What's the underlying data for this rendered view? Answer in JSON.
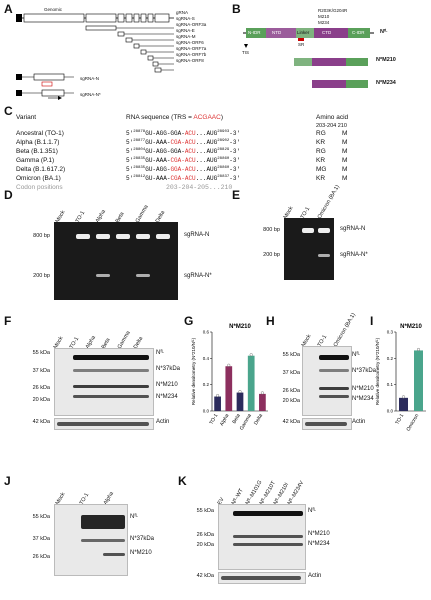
{
  "panels": {
    "A": "A",
    "B": "B",
    "C": "C",
    "D": "D",
    "E": "E",
    "F": "F",
    "G": "G",
    "H": "H",
    "I": "I",
    "J": "J",
    "K": "K"
  },
  "panelA": {
    "genomic_label": "Genomic",
    "orf_labels": [
      "S",
      "E",
      "M",
      "6",
      "7a",
      "7b",
      "8",
      "N"
    ],
    "transcripts": [
      "gRNA",
      "sgRNA-S",
      "sgRNA-ORF3a",
      "sgRNA-E",
      "sgRNA-M",
      "sgRNA-ORF6",
      "sgRNA-ORF7a",
      "sgRNA-ORF7b",
      "sgRNA-ORF8",
      "sgRNA-N",
      "sgRNA-N*"
    ],
    "n_label": "N",
    "n_star_label": "N*"
  },
  "panelB": {
    "mutations": "R203K/G204R",
    "m210": "M210",
    "m234": "M234",
    "tis": "TIS",
    "domains": [
      "N-IDR",
      "NTD",
      "Linker",
      "CTD",
      "C-IDR"
    ],
    "srrm": "SR",
    "n_fl": "Nᶠᴸ",
    "n_m210": "N*M210",
    "n_m234": "N*M234"
  },
  "panelC": {
    "header_variant": "Variant",
    "header_rna": "RNA sequence (TRS = ",
    "trs": "ACGAAC",
    "header_close": ")",
    "header_aa": "Amino acid",
    "aa_positions": "203-204   210",
    "rows": [
      {
        "variant": "Ancestral (TO-1)",
        "pre": "5'",
        "start": "28878",
        "seq1": "GU-AGG-GGA-",
        "seq2": "ACU",
        "seq3": "...AUG",
        "end": "28903",
        "post": "-3'",
        "aa1": "RG",
        "aa2": "M"
      },
      {
        "variant": "Alpha (B.1.1.7)",
        "pre": "5'",
        "start": "28877",
        "seq1": "GU-AAA-",
        "seq2": "CGA-ACU",
        "seq3": "...AUG",
        "end": "28902",
        "post": "-3'",
        "aa1": "KR",
        "aa2": "M"
      },
      {
        "variant": "Beta (B.1.351)",
        "pre": "5'",
        "start": "28804",
        "seq1": "GU-AGG-GGA-",
        "seq2": "ACU",
        "seq3": "...AUG",
        "end": "28829",
        "post": "-3'",
        "aa1": "RG",
        "aa2": "M"
      },
      {
        "variant": "Gamma (P.1)",
        "pre": "5'",
        "start": "28835",
        "seq1": "GU-AAA-",
        "seq2": "CGA-ACU",
        "seq3": "...AUG",
        "end": "28860",
        "post": "-3'",
        "aa1": "KR",
        "aa2": "M"
      },
      {
        "variant": "Delta (B.1.617.2)",
        "pre": "5'",
        "start": "28835",
        "seq1": "GU-AGG-",
        "seq2": "GGA-ACU",
        "seq3": "...AUG",
        "end": "28860",
        "post": "-3'",
        "aa1": "MG",
        "aa2": "M"
      },
      {
        "variant": "Omicron (BA.1)",
        "pre": "5'",
        "start": "28812",
        "seq1": "GU-AAA-",
        "seq2": "CGA-ACU",
        "seq3": "...AUG",
        "end": "28837",
        "post": "-3'",
        "aa1": "KR",
        "aa2": "M"
      }
    ],
    "codon_label": "Codon positions",
    "codon_positions": "203-204-205...210"
  },
  "panelD": {
    "lanes": [
      "Mock",
      "TO-1",
      "Alpha",
      "Beta",
      "Gamma",
      "Delta"
    ],
    "markers": [
      "800 bp",
      "200 bp"
    ],
    "bands": [
      "sgRNA-N",
      "sgRNA-N*"
    ]
  },
  "panelE": {
    "lanes": [
      "Mock",
      "TO-1",
      "Omicron (BA.1)"
    ],
    "markers": [
      "800 bp",
      "200 bp"
    ],
    "bands": [
      "sgRNA-N",
      "sgRNA-N*"
    ]
  },
  "panelF": {
    "lanes": [
      "Mock",
      "TO-1",
      "Alpha",
      "Beta",
      "Gamma",
      "Delta"
    ],
    "markers": [
      "55 kDa",
      "37 kDa",
      "26 kDa",
      "20 kDa",
      "42 kDa"
    ],
    "bands": [
      "Nᶠᴸ",
      "N*37kDa",
      "N*M210",
      "N*M234",
      "Actin"
    ]
  },
  "panelG": {
    "title": "N*M210",
    "ylabel": "Relative densitometry (N*210/Nᶠᴸ)",
    "yticks": [
      "0.0",
      "0.2",
      "0.4",
      "0.6"
    ],
    "categories": [
      "TO-1",
      "Alpha",
      "Beta",
      "Gamma",
      "Delta"
    ],
    "values": [
      0.11,
      0.34,
      0.14,
      0.42,
      0.13
    ],
    "colors": [
      "#2b2b5c",
      "#8c2f5e",
      "#2b2b5c",
      "#4aa58c",
      "#8c2f5e"
    ]
  },
  "panelH": {
    "lanes": [
      "Mock",
      "TO-1",
      "Omicron (BA.1)"
    ],
    "markers": [
      "55 kDa",
      "37 kDa",
      "26 kDa",
      "20 kDa",
      "42 kDa"
    ],
    "bands": [
      "Nᶠᴸ",
      "N*37kDa",
      "N*M210",
      "N*M234",
      "Actin"
    ]
  },
  "panelI": {
    "title": "N*M210",
    "ylabel": "Relative densitometry (N*210/Nᶠᴸ)",
    "yticks": [
      "0.0",
      "0.1",
      "0.2",
      "0.3"
    ],
    "categories": [
      "TO-1",
      "Omicron"
    ],
    "values": [
      0.05,
      0.23
    ],
    "colors": [
      "#2b2b5c",
      "#4aa58c"
    ]
  },
  "panelJ": {
    "lanes": [
      "Mock",
      "TO-1",
      "Alpha"
    ],
    "markers": [
      "55 kDa",
      "37 kDa",
      "26 kDa"
    ],
    "bands": [
      "Nᶠᴸ",
      "N*37kDa",
      "N*M210"
    ]
  },
  "panelK": {
    "lanes": [
      "EV",
      "Nᶠᴸ-WT",
      "Nᶠᴸ-M101G",
      "Nᶠᴸ-M210T",
      "Nᶠᴸ-M210I",
      "Nᶠᴸ-M234V"
    ],
    "markers": [
      "55 kDa",
      "26 kDa",
      "20 kDa",
      "42 kDa"
    ],
    "bands": [
      "Nᶠᴸ",
      "N*M210",
      "N*M234",
      "Actin"
    ]
  },
  "chart_data": [
    {
      "type": "bar",
      "title": "N*M210",
      "ylabel": "Relative densitometry (N*210/Nᶠᴸ)",
      "categories": [
        "TO-1",
        "Alpha",
        "Beta",
        "Gamma",
        "Delta"
      ],
      "values": [
        0.11,
        0.34,
        0.14,
        0.42,
        0.13
      ],
      "ylim": [
        0,
        0.6
      ]
    },
    {
      "type": "bar",
      "title": "N*M210",
      "ylabel": "Relative densitometry (N*210/Nᶠᴸ)",
      "categories": [
        "TO-1",
        "Omicron"
      ],
      "values": [
        0.05,
        0.23
      ],
      "ylim": [
        0,
        0.3
      ]
    }
  ]
}
